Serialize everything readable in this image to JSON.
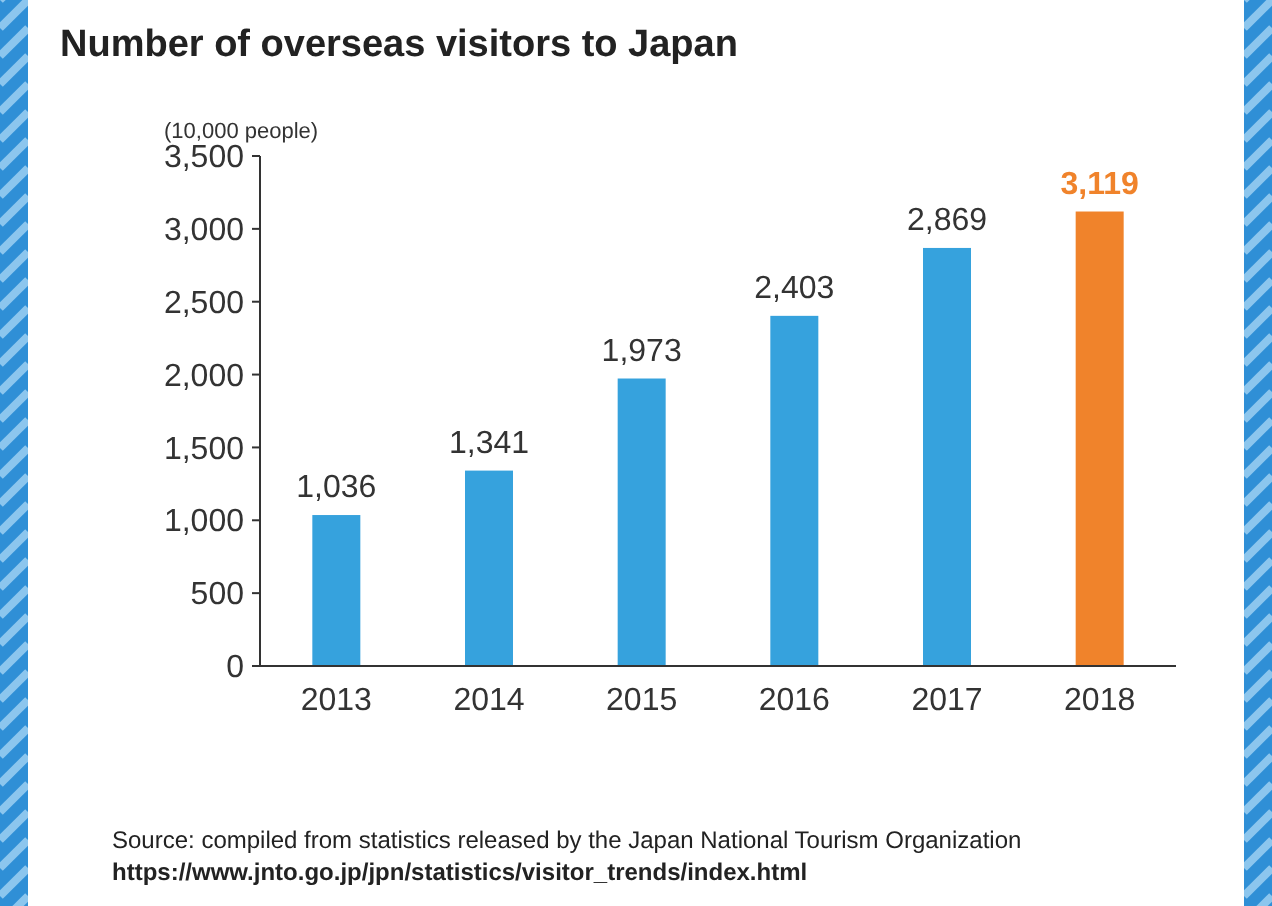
{
  "chart_data": {
    "type": "bar",
    "title": "Number of overseas visitors to Japan",
    "ylabel": "(10,000 people)",
    "categories": [
      "2013",
      "2014",
      "2015",
      "2016",
      "2017",
      "2018"
    ],
    "values": [
      1036,
      1341,
      1973,
      2403,
      2869,
      3119
    ],
    "value_labels": [
      "1,036",
      "1,341",
      "1,973",
      "2,403",
      "2,869",
      "3,119"
    ],
    "colors": [
      "#36a2dd",
      "#36a2dd",
      "#36a2dd",
      "#36a2dd",
      "#36a2dd",
      "#f0832b"
    ],
    "ylim": [
      0,
      3500
    ],
    "yticks": [
      {
        "value": 0,
        "label": "0"
      },
      {
        "value": 500,
        "label": "500"
      },
      {
        "value": 1000,
        "label": "1,000"
      },
      {
        "value": 1500,
        "label": "1,500"
      },
      {
        "value": 2000,
        "label": "2,000"
      },
      {
        "value": 2500,
        "label": "2,500"
      },
      {
        "value": 3000,
        "label": "3,000"
      },
      {
        "value": 3500,
        "label": "3,500"
      }
    ],
    "grid": false,
    "annotations": [
      "Source: compiled from statistics released by the Japan National Tourism Organization",
      "https://www.jnto.go.jp/jpn/statistics/visitor_trends/index.html"
    ]
  }
}
